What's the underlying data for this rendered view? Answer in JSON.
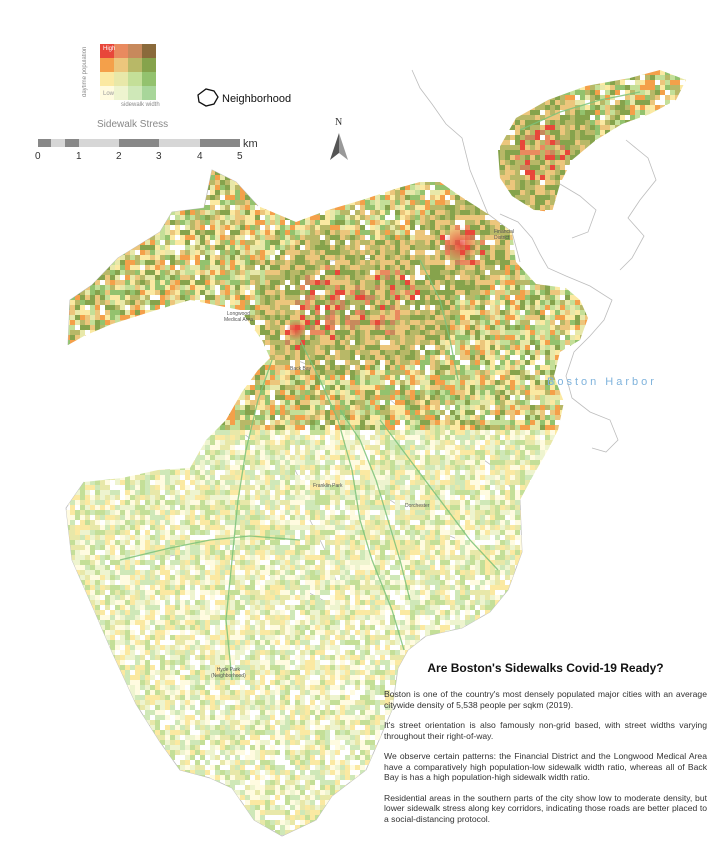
{
  "legend": {
    "title": "Sidewalk Stress",
    "y_label": "daytime population",
    "x_label": "sidewalk width",
    "high_label": "High",
    "low_label": "Low",
    "neighborhood_label": "Neighborhood",
    "colors": [
      [
        "#e8473a",
        "#e98a5f",
        "#c7895c",
        "#8a6a3b"
      ],
      [
        "#f4a04a",
        "#ecc67c",
        "#b8b867",
        "#86a34c"
      ],
      [
        "#fbe9a2",
        "#e8e8a9",
        "#c4df98",
        "#93c26e"
      ],
      [
        "#fffbe0",
        "#eef4cf",
        "#cfe8b8",
        "#a8d69a"
      ]
    ]
  },
  "scale_bar": {
    "unit": "km",
    "ticks": [
      "0",
      "1",
      "2",
      "3",
      "4",
      "5"
    ]
  },
  "north_arrow": {
    "label": "N",
    "icon": "north-arrow-icon"
  },
  "places": {
    "financial_district": "Financial\nDistrict",
    "longwood": "Longwood\nMedical Area",
    "back_bay": "Back Bay",
    "franklin_park": "Franklin Park",
    "dorchester": "Dorchester",
    "hyde_park": "Hyde Park\n(Neighborhood)",
    "boston_harbor": "Boston Harbor"
  },
  "story": {
    "title": "Are Boston's Sidewalks Covid-19 Ready?",
    "p1": "Boston is one of the country's most densely populated major cities with an average citywide density of 5,538 people per sqkm (2019).",
    "p2": "It's street orientation is also famously non-grid based, with street widths varying throughout their right-of-way.",
    "p3": "We observe certain patterns: the Financial District and the Longwood Medical Area have a comparatively high population-low sidewalk width ratio, whereas all of Back Bay is has a high population-high sidewalk width ratio.",
    "p4": "Residential areas in the southern parts of the city show low to moderate density, but lower sidewalk stress along key corridors, indicating those roads are better placed to a social-distancing protocol."
  }
}
